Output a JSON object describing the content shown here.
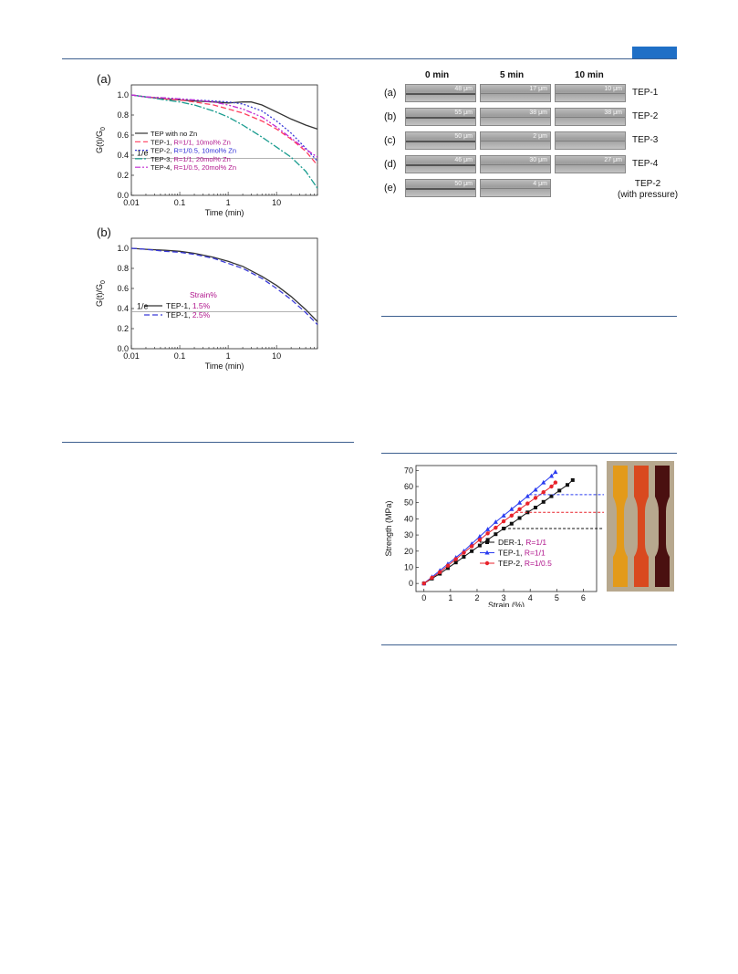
{
  "header": {
    "accent_color": "#1f6fc6",
    "rule_color": "#3d5f8f"
  },
  "figure_a": {
    "panel_label": "(a)",
    "ylabel": "G(t)/G",
    "ylabel_sub": "0",
    "xlabel": "Time (min)",
    "line_label": "1/e",
    "chart_data": {
      "type": "line",
      "x_scale": "log",
      "xlim": [
        0.01,
        70
      ],
      "ylim": [
        0.0,
        1.1
      ],
      "xticks": [
        "0.01",
        "0.1",
        "1",
        "10"
      ],
      "yticks": [
        "0.0",
        "0.2",
        "0.4",
        "0.6",
        "0.8",
        "1.0"
      ],
      "reference_line": 0.368,
      "series": [
        {
          "name": "TEP with no Zn",
          "name_plain": "TEP with no Zn",
          "name_colored": "",
          "color": "#333333",
          "dash": "none",
          "x": [
            0.01,
            0.02,
            0.05,
            0.1,
            0.2,
            0.5,
            1,
            2,
            3,
            5,
            10,
            20,
            40,
            70
          ],
          "y": [
            1.0,
            0.98,
            0.96,
            0.95,
            0.94,
            0.93,
            0.92,
            0.93,
            0.93,
            0.9,
            0.83,
            0.76,
            0.7,
            0.66
          ]
        },
        {
          "name": "TEP-1, R=1/1, 10mol% Zn",
          "name_plain": "TEP-1, ",
          "name_colored": "R=1/1, 10mol% Zn",
          "color": "#ff3b5c",
          "dash": "6,3",
          "x": [
            0.01,
            0.02,
            0.05,
            0.1,
            0.2,
            0.5,
            1,
            2,
            5,
            10,
            20,
            40,
            70
          ],
          "y": [
            1.0,
            0.98,
            0.96,
            0.95,
            0.93,
            0.9,
            0.86,
            0.82,
            0.74,
            0.66,
            0.56,
            0.44,
            0.3
          ]
        },
        {
          "name": "TEP-2, R=1/0.5, 10mol% Zn",
          "name_plain": "TEP-2, ",
          "name_colored": "R=1/0.5, 10mol% Zn",
          "color": "#3a3ad8",
          "dash": "2,2",
          "x": [
            0.01,
            0.02,
            0.05,
            0.1,
            0.2,
            0.5,
            1,
            2,
            5,
            10,
            20,
            40,
            70
          ],
          "y": [
            1.0,
            0.98,
            0.97,
            0.96,
            0.95,
            0.94,
            0.93,
            0.91,
            0.84,
            0.74,
            0.62,
            0.47,
            0.34
          ]
        },
        {
          "name": "TEP-3, R=1/1, 20mol% Zn",
          "name_plain": "TEP-3, ",
          "name_colored": "R=1/1, 20mol% Zn",
          "color": "#1a9c8f",
          "dash": "8,2,2,2",
          "x": [
            0.01,
            0.02,
            0.05,
            0.1,
            0.2,
            0.5,
            1,
            2,
            5,
            10,
            20,
            40,
            70
          ],
          "y": [
            1.0,
            0.98,
            0.95,
            0.93,
            0.9,
            0.84,
            0.78,
            0.7,
            0.58,
            0.48,
            0.38,
            0.24,
            0.07
          ]
        },
        {
          "name": "TEP-4, R=1/0.5, 20mol% Zn",
          "name_plain": "TEP-4, ",
          "name_colored": "R=1/0.5, 20mol% Zn",
          "color": "#c02ad4",
          "dash": "6,2,2,2,2,2",
          "x": [
            0.01,
            0.02,
            0.05,
            0.1,
            0.2,
            0.5,
            1,
            2,
            5,
            10,
            20,
            40,
            70
          ],
          "y": [
            1.0,
            0.98,
            0.97,
            0.96,
            0.95,
            0.93,
            0.9,
            0.86,
            0.78,
            0.68,
            0.57,
            0.46,
            0.38
          ]
        }
      ]
    }
  },
  "figure_b": {
    "panel_label": "(b)",
    "ylabel": "G(t)/G",
    "ylabel_sub": "0",
    "xlabel": "Time (min)",
    "line_label": "1/e",
    "legend_title": "Strain%",
    "chart_data": {
      "type": "line",
      "x_scale": "log",
      "xlim": [
        0.01,
        70
      ],
      "ylim": [
        0.0,
        1.1
      ],
      "xticks": [
        "0.01",
        "0.1",
        "1",
        "10"
      ],
      "yticks": [
        "0.0",
        "0.2",
        "0.4",
        "0.6",
        "0.8",
        "1.0"
      ],
      "reference_line": 0.368,
      "series": [
        {
          "name": "TEP-1, 1.5%",
          "name_plain": "TEP-1, ",
          "name_colored": "1.5%",
          "color": "#333333",
          "dash": "none",
          "x": [
            0.01,
            0.02,
            0.05,
            0.1,
            0.2,
            0.5,
            1,
            2,
            5,
            10,
            20,
            40,
            70
          ],
          "y": [
            1.0,
            0.99,
            0.98,
            0.97,
            0.95,
            0.91,
            0.87,
            0.82,
            0.72,
            0.63,
            0.52,
            0.39,
            0.27
          ]
        },
        {
          "name": "TEP-1, 2.5%",
          "name_plain": "TEP-1, ",
          "name_colored": "2.5%",
          "color": "#3a3ad8",
          "dash": "6,3",
          "x": [
            0.01,
            0.02,
            0.05,
            0.1,
            0.2,
            0.5,
            1,
            2,
            5,
            10,
            20,
            40,
            70
          ],
          "y": [
            1.0,
            0.99,
            0.97,
            0.96,
            0.94,
            0.9,
            0.85,
            0.8,
            0.7,
            0.6,
            0.49,
            0.36,
            0.24
          ]
        }
      ]
    }
  },
  "figure_micro": {
    "column_headers": [
      "0 min",
      "5 min",
      "10 min"
    ],
    "rows": [
      {
        "label": "(a)",
        "sample": "TEP-1",
        "sample_sub": "",
        "cells": [
          "48 μm",
          "17 μm",
          "10 μm"
        ]
      },
      {
        "label": "(b)",
        "sample": "TEP-2",
        "sample_sub": "",
        "cells": [
          "55 μm",
          "38 μm",
          "38 μm"
        ]
      },
      {
        "label": "(c)",
        "sample": "TEP-3",
        "sample_sub": "",
        "cells": [
          "50 μm",
          "2 μm",
          ""
        ]
      },
      {
        "label": "(d)",
        "sample": "TEP-4",
        "sample_sub": "",
        "cells": [
          "46 μm",
          "30 μm",
          "27 μm"
        ]
      },
      {
        "label": "(e)",
        "sample": "TEP-2",
        "sample_sub": "(with pressure)",
        "cells": [
          "50 μm",
          "4 μm",
          null
        ]
      }
    ]
  },
  "figure_strength": {
    "ylabel": "Strength (MPa)",
    "xlabel": "Strain (%)",
    "chart_data": {
      "type": "line",
      "xlim": [
        -0.3,
        6.5
      ],
      "ylim": [
        -5,
        73
      ],
      "xticks": [
        "0",
        "1",
        "2",
        "3",
        "4",
        "5",
        "6"
      ],
      "yticks": [
        "0",
        "10",
        "20",
        "30",
        "40",
        "50",
        "60",
        "70"
      ],
      "series": [
        {
          "name": "DER-1, R=1/1",
          "name_plain": "DER-1, ",
          "name_colored": "R=1/1",
          "color": "#111111",
          "marker": "square",
          "x": [
            0,
            0.3,
            0.6,
            0.9,
            1.2,
            1.5,
            1.8,
            2.1,
            2.4,
            2.7,
            3.0,
            3.3,
            3.6,
            3.9,
            4.2,
            4.5,
            4.8,
            5.1,
            5.4,
            5.6
          ],
          "y": [
            0,
            3,
            6,
            9.5,
            13,
            16.5,
            20,
            23.5,
            27,
            30.5,
            34,
            37,
            40.5,
            44,
            47,
            50.5,
            54,
            57.5,
            61,
            64
          ]
        },
        {
          "name": "TEP-1, R=1/1",
          "name_plain": "TEP-1, ",
          "name_colored": "R=1/1",
          "color": "#2b3df0",
          "marker": "triangle",
          "x": [
            0,
            0.3,
            0.6,
            0.9,
            1.2,
            1.5,
            1.8,
            2.1,
            2.4,
            2.7,
            3.0,
            3.3,
            3.6,
            3.9,
            4.2,
            4.5,
            4.8,
            4.95
          ],
          "y": [
            0,
            4,
            8,
            12,
            16,
            20,
            24.5,
            29,
            33.5,
            38,
            42,
            46,
            50,
            54,
            58,
            62.5,
            66.5,
            69
          ]
        },
        {
          "name": "TEP-2, R=1/0.5",
          "name_plain": "TEP-2, ",
          "name_colored": "R=1/0.5",
          "color": "#e8232b",
          "marker": "circle",
          "x": [
            0,
            0.3,
            0.6,
            0.9,
            1.2,
            1.5,
            1.8,
            2.1,
            2.4,
            2.7,
            3.0,
            3.3,
            3.6,
            3.9,
            4.2,
            4.5,
            4.8,
            4.95
          ],
          "y": [
            0,
            3.5,
            7,
            11,
            15,
            19,
            23,
            27,
            31,
            34.5,
            38.5,
            42,
            46,
            49.5,
            53,
            56.5,
            60,
            62.5
          ]
        }
      ],
      "reference_lines": [
        {
          "y": 55,
          "color": "#2b3df0"
        },
        {
          "y": 44,
          "color": "#e8232b"
        },
        {
          "y": 34,
          "color": "#111111"
        }
      ]
    }
  },
  "photo": {
    "samples": [
      {
        "color": "#e39a1a"
      },
      {
        "color": "#d9491f"
      },
      {
        "color": "#4a1010"
      }
    ]
  }
}
